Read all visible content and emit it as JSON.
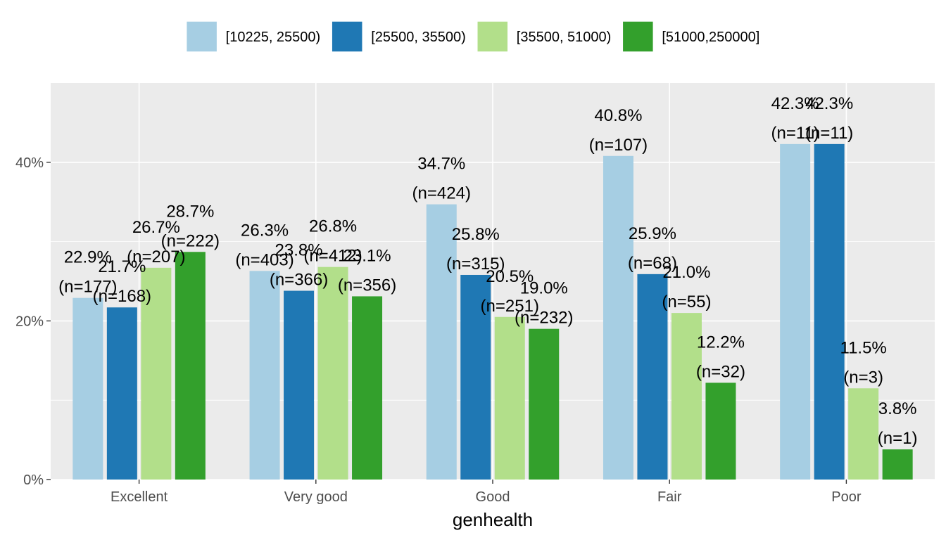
{
  "chart_data": {
    "type": "bar",
    "categories": [
      "Excellent",
      "Very good",
      "Good",
      "Fair",
      "Poor"
    ],
    "series": [
      {
        "name": "[10225, 25500)",
        "color": "#a6cee3",
        "values": [
          22.9,
          26.3,
          34.7,
          40.8,
          42.3
        ],
        "labels": [
          "22.9%",
          "26.3%",
          "34.7%",
          "40.8%",
          "42.3%"
        ],
        "counts": [
          "(n=177)",
          "(n=403)",
          "(n=424)",
          "(n=107)",
          "(n=11)"
        ]
      },
      {
        "name": "[25500, 35500)",
        "color": "#1f78b4",
        "values": [
          21.7,
          23.8,
          25.8,
          25.9,
          42.3
        ],
        "labels": [
          "21.7%",
          "23.8%",
          "25.8%",
          "25.9%",
          "42.3%"
        ],
        "counts": [
          "(n=168)",
          "(n=366)",
          "(n=315)",
          "(n=68)",
          "(n=11)"
        ]
      },
      {
        "name": "[35500, 51000)",
        "color": "#b2df8a",
        "values": [
          26.7,
          26.8,
          20.5,
          21.0,
          11.5
        ],
        "labels": [
          "26.7%",
          "26.8%",
          "20.5%",
          "21.0%",
          "11.5%"
        ],
        "counts": [
          "(n=207)",
          "(n=412)",
          "(n=251)",
          "(n=55)",
          "(n=3)"
        ]
      },
      {
        "name": "[51000,250000]",
        "color": "#33a02c",
        "values": [
          28.7,
          23.1,
          19.0,
          12.2,
          3.8
        ],
        "labels": [
          "28.7%",
          "23.1%",
          "19.0%",
          "12.2%",
          "3.8%"
        ],
        "counts": [
          "(n=222)",
          "(n=356)",
          "(n=232)",
          "(n=32)",
          "(n=1)"
        ]
      }
    ],
    "xlabel": "genhealth",
    "ylabel": "",
    "ylim": [
      0,
      50
    ],
    "yticks": [
      0,
      20,
      40
    ],
    "ytick_labels": [
      "0%",
      "20%",
      "40%"
    ],
    "grid": true,
    "legend_position": "top",
    "panel_background": "#ebebeb"
  }
}
